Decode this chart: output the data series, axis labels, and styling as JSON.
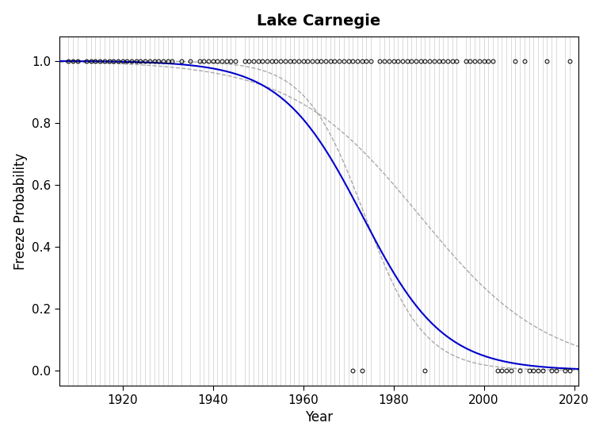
{
  "title": "Lake Carnegie",
  "xlabel": "Year",
  "ylabel": "Freeze Probability",
  "xlim": [
    1906,
    2021
  ],
  "ylim": [
    -0.05,
    1.08
  ],
  "yticks": [
    0.0,
    0.2,
    0.4,
    0.6,
    0.8,
    1.0
  ],
  "xticks": [
    1920,
    1940,
    1960,
    1980,
    2000,
    2020
  ],
  "freeze_years": [
    1908,
    1909,
    1910,
    1912,
    1913,
    1914,
    1915,
    1916,
    1917,
    1918,
    1919,
    1920,
    1921,
    1922,
    1923,
    1924,
    1925,
    1926,
    1927,
    1928,
    1929,
    1930,
    1931,
    1933,
    1935,
    1937,
    1938,
    1939,
    1940,
    1941,
    1942,
    1943,
    1944,
    1945,
    1947,
    1948,
    1949,
    1950,
    1951,
    1952,
    1953,
    1954,
    1955,
    1956,
    1957,
    1958,
    1959,
    1960,
    1961,
    1962,
    1963,
    1964,
    1965,
    1966,
    1967,
    1968,
    1969,
    1970,
    1971,
    1972,
    1973,
    1974,
    1975,
    1977,
    1978,
    1979,
    1980,
    1981,
    1982,
    1983,
    1984,
    1985,
    1986,
    1987,
    1988,
    1989,
    1990,
    1991,
    1992,
    1993,
    1994,
    1996,
    1997,
    1998,
    1999,
    2000,
    2001,
    2002,
    2007,
    2009,
    2014,
    2019
  ],
  "no_freeze_years": [
    1971,
    1973,
    1987,
    2003,
    2004,
    2005,
    2006,
    2008,
    2010,
    2011,
    2012,
    2013,
    2015,
    2016,
    2018,
    2019
  ],
  "logit_b0": 220.0,
  "logit_b1": -0.1115,
  "ci_upper_b0": 140.0,
  "ci_upper_b1": -0.0705,
  "ci_lower_b0": 300.0,
  "ci_lower_b1": -0.152,
  "curve_color": "#0000CC",
  "ci_color": "#AAAAAA",
  "vline_color": "#AAAAAA",
  "point_color": "#000000",
  "bg_color": "#FFFFFF",
  "title_fontsize": 14,
  "label_fontsize": 12,
  "tick_fontsize": 11
}
